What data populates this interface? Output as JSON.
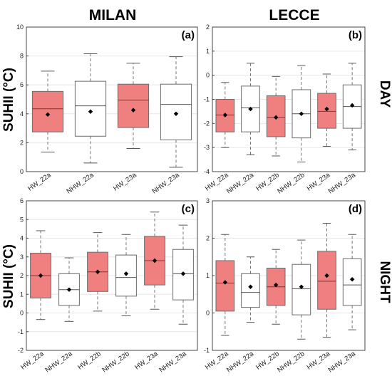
{
  "headers": {
    "col1": "MILAN",
    "col2": "LECCE",
    "row1": "DAY",
    "row2": "NIGHT"
  },
  "colors": {
    "hw_fill": "#f08080",
    "nhw_fill": "#ffffff",
    "box_edge": "#6b6b6b",
    "median": "#8b2e2e",
    "mean": "#000000"
  },
  "chart_data": [
    {
      "id": "a",
      "panel_label": "(a)",
      "type": "box",
      "ylabel": "SUHII (°C)",
      "ylim": [
        0,
        10
      ],
      "yticks": [
        "0",
        "2",
        "4",
        "6",
        "8",
        "10"
      ],
      "grid": true,
      "categories": [
        "HW_22a",
        "NHW_22a",
        "HW_23a",
        "NHW_23a"
      ],
      "boxes": [
        {
          "min": 1.35,
          "q1": 2.75,
          "median": 4.35,
          "q3": 5.55,
          "max": 6.95,
          "mean": 3.95
        },
        {
          "min": 0.6,
          "q1": 2.45,
          "median": 4.55,
          "q3": 6.25,
          "max": 8.15,
          "mean": 4.15
        },
        {
          "min": 1.6,
          "q1": 3.05,
          "median": 4.95,
          "q3": 6.05,
          "max": 7.5,
          "mean": 4.25
        },
        {
          "min": 0.3,
          "q1": 2.2,
          "median": 4.65,
          "q3": 6.05,
          "max": 7.95,
          "mean": 4.0
        }
      ]
    },
    {
      "id": "b",
      "panel_label": "(b)",
      "type": "box",
      "ylabel": "",
      "ylim": [
        -4,
        2
      ],
      "yticks": [
        "-4",
        "-3",
        "-2",
        "-1",
        "0",
        "1",
        "2"
      ],
      "grid": true,
      "categories": [
        "HW_22a",
        "NHW_22a",
        "HW_22b",
        "NHW_22b",
        "HW_23a",
        "NHW_23a"
      ],
      "boxes": [
        {
          "min": -3.0,
          "q1": -2.35,
          "median": -1.65,
          "q3": -1.0,
          "max": -0.3,
          "mean": -1.65
        },
        {
          "min": -3.3,
          "q1": -2.35,
          "median": -1.35,
          "q3": -0.45,
          "max": 0.5,
          "mean": -1.4
        },
        {
          "min": -3.35,
          "q1": -2.55,
          "median": -1.75,
          "q3": -0.85,
          "max": -0.05,
          "mean": -1.75
        },
        {
          "min": -3.6,
          "q1": -2.6,
          "median": -1.6,
          "q3": -0.6,
          "max": 0.4,
          "mean": -1.6
        },
        {
          "min": -2.95,
          "q1": -2.2,
          "median": -1.5,
          "q3": -0.75,
          "max": 0.05,
          "mean": -1.4
        },
        {
          "min": -3.1,
          "q1": -2.2,
          "median": -1.3,
          "q3": -0.4,
          "max": 0.5,
          "mean": -1.25
        }
      ]
    },
    {
      "id": "c",
      "panel_label": "(c)",
      "type": "box",
      "ylabel": "SUHII (°C)",
      "ylim": [
        -2,
        6
      ],
      "yticks": [
        "-2",
        "-1",
        "0",
        "1",
        "2",
        "3",
        "4",
        "5",
        "6"
      ],
      "grid": true,
      "categories": [
        "HW_22a",
        "NHW_22a",
        "HW_22b",
        "NHW_22b",
        "HW_23a",
        "NHW_23a"
      ],
      "boxes": [
        {
          "min": -0.35,
          "q1": 0.8,
          "median": 2.0,
          "q3": 3.2,
          "max": 4.4,
          "mean": 2.0
        },
        {
          "min": -0.45,
          "q1": 0.4,
          "median": 1.25,
          "q3": 2.1,
          "max": 2.95,
          "mean": 1.25
        },
        {
          "min": 0.1,
          "q1": 1.15,
          "median": 2.2,
          "q3": 3.25,
          "max": 4.3,
          "mean": 2.2
        },
        {
          "min": -0.15,
          "q1": 0.9,
          "median": 1.9,
          "q3": 3.1,
          "max": 4.2,
          "mean": 2.1
        },
        {
          "min": 0.2,
          "q1": 1.5,
          "median": 2.8,
          "q3": 4.1,
          "max": 5.4,
          "mean": 2.8
        },
        {
          "min": -0.6,
          "q1": 0.7,
          "median": 2.1,
          "q3": 3.4,
          "max": 4.7,
          "mean": 2.1
        }
      ]
    },
    {
      "id": "d",
      "panel_label": "(d)",
      "type": "box",
      "ylabel": "",
      "ylim": [
        -1,
        3
      ],
      "yticks": [
        "-1",
        "0",
        "1",
        "2",
        "3"
      ],
      "grid": true,
      "categories": [
        "HW_22a",
        "NHW_22a",
        "HW_22b",
        "NHW_22b",
        "HW_23a",
        "NHW_23a"
      ],
      "boxes": [
        {
          "min": -0.6,
          "q1": 0.05,
          "median": 0.8,
          "q3": 1.4,
          "max": 2.1,
          "mean": 0.82
        },
        {
          "min": -0.25,
          "q1": 0.15,
          "median": 0.55,
          "q3": 1.05,
          "max": 1.5,
          "mean": 0.7
        },
        {
          "min": -0.3,
          "q1": 0.2,
          "median": 0.7,
          "q3": 1.2,
          "max": 1.7,
          "mean": 0.75
        },
        {
          "min": -0.7,
          "q1": -0.05,
          "median": 0.65,
          "q3": 1.3,
          "max": 1.95,
          "mean": 0.7
        },
        {
          "min": -0.65,
          "q1": 0.1,
          "median": 0.85,
          "q3": 1.65,
          "max": 2.4,
          "mean": 1.0
        },
        {
          "min": -0.45,
          "q1": 0.2,
          "median": 0.75,
          "q3": 1.45,
          "max": 2.1,
          "mean": 0.9
        }
      ]
    }
  ]
}
